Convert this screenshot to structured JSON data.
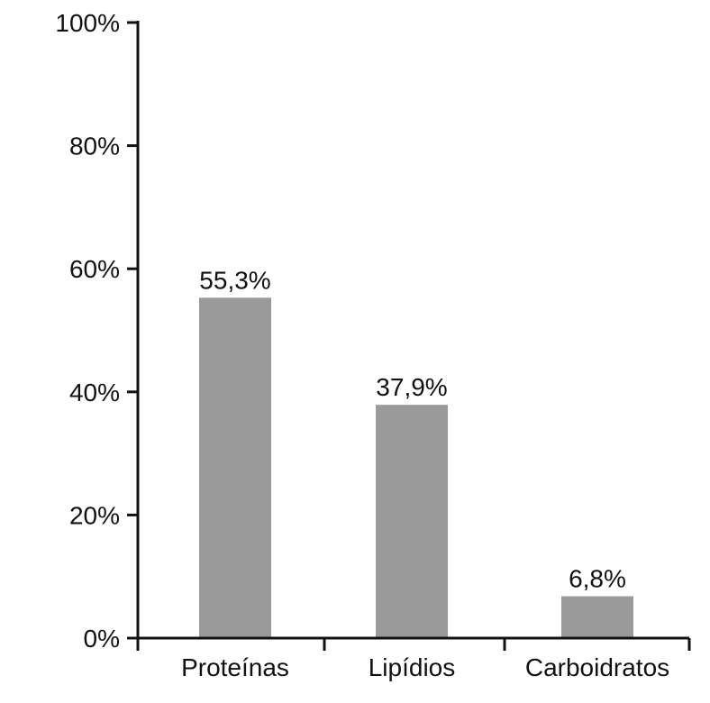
{
  "chart_data": {
    "type": "bar",
    "categories": [
      "Proteínas",
      "Lipídios",
      "Carboidratos"
    ],
    "values": [
      55.3,
      37.9,
      6.8
    ],
    "value_labels": [
      "55,3%",
      "37,9%",
      "6,8%"
    ],
    "title": "",
    "xlabel": "",
    "ylabel": "",
    "ylim": [
      0,
      100
    ],
    "yticks": [
      0,
      20,
      40,
      60,
      80,
      100
    ],
    "ytick_labels": [
      "0%",
      "20%",
      "40%",
      "60%",
      "80%",
      "100%"
    ],
    "grid": false,
    "legend": "none",
    "colors": {
      "bar": "#9a9a9a",
      "axis": "#111111",
      "text": "#111111"
    }
  }
}
